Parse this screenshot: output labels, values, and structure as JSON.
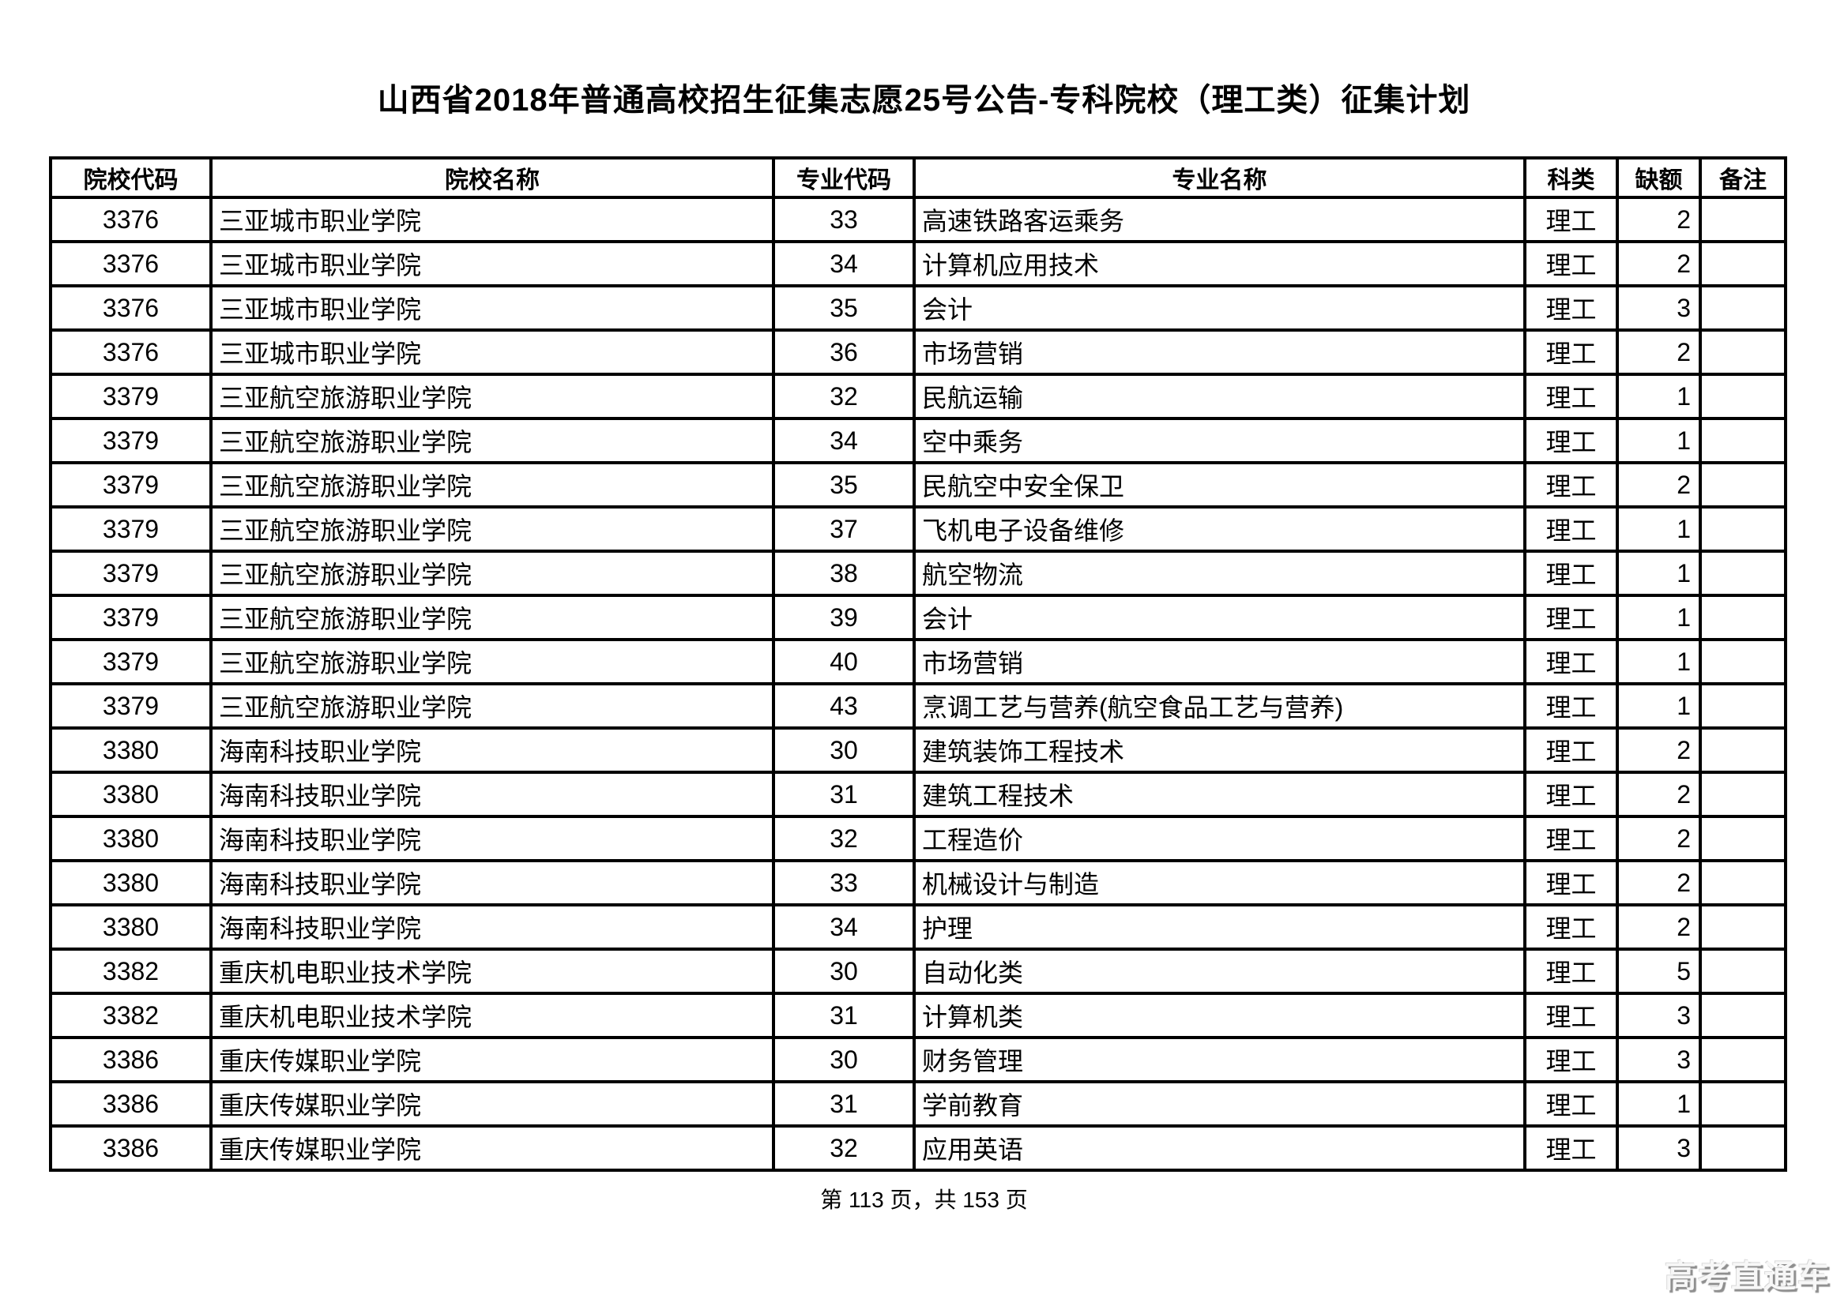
{
  "title": "山西省2018年普通高校招生征集志愿25号公告-专科院校（理工类）征集计划",
  "table": {
    "headers": [
      "院校代码",
      "院校名称",
      "专业代码",
      "专业名称",
      "科类",
      "缺额",
      "备注"
    ],
    "rows": [
      [
        "3376",
        "三亚城市职业学院",
        "33",
        "高速铁路客运乘务",
        "理工",
        "2",
        ""
      ],
      [
        "3376",
        "三亚城市职业学院",
        "34",
        "计算机应用技术",
        "理工",
        "2",
        ""
      ],
      [
        "3376",
        "三亚城市职业学院",
        "35",
        "会计",
        "理工",
        "3",
        ""
      ],
      [
        "3376",
        "三亚城市职业学院",
        "36",
        "市场营销",
        "理工",
        "2",
        ""
      ],
      [
        "3379",
        "三亚航空旅游职业学院",
        "32",
        "民航运输",
        "理工",
        "1",
        ""
      ],
      [
        "3379",
        "三亚航空旅游职业学院",
        "34",
        "空中乘务",
        "理工",
        "1",
        ""
      ],
      [
        "3379",
        "三亚航空旅游职业学院",
        "35",
        "民航空中安全保卫",
        "理工",
        "2",
        ""
      ],
      [
        "3379",
        "三亚航空旅游职业学院",
        "37",
        "飞机电子设备维修",
        "理工",
        "1",
        ""
      ],
      [
        "3379",
        "三亚航空旅游职业学院",
        "38",
        "航空物流",
        "理工",
        "1",
        ""
      ],
      [
        "3379",
        "三亚航空旅游职业学院",
        "39",
        "会计",
        "理工",
        "1",
        ""
      ],
      [
        "3379",
        "三亚航空旅游职业学院",
        "40",
        "市场营销",
        "理工",
        "1",
        ""
      ],
      [
        "3379",
        "三亚航空旅游职业学院",
        "43",
        "烹调工艺与营养(航空食品工艺与营养)",
        "理工",
        "1",
        ""
      ],
      [
        "3380",
        "海南科技职业学院",
        "30",
        "建筑装饰工程技术",
        "理工",
        "2",
        ""
      ],
      [
        "3380",
        "海南科技职业学院",
        "31",
        "建筑工程技术",
        "理工",
        "2",
        ""
      ],
      [
        "3380",
        "海南科技职业学院",
        "32",
        "工程造价",
        "理工",
        "2",
        ""
      ],
      [
        "3380",
        "海南科技职业学院",
        "33",
        "机械设计与制造",
        "理工",
        "2",
        ""
      ],
      [
        "3380",
        "海南科技职业学院",
        "34",
        "护理",
        "理工",
        "2",
        ""
      ],
      [
        "3382",
        "重庆机电职业技术学院",
        "30",
        "自动化类",
        "理工",
        "5",
        ""
      ],
      [
        "3382",
        "重庆机电职业技术学院",
        "31",
        "计算机类",
        "理工",
        "3",
        ""
      ],
      [
        "3386",
        "重庆传媒职业学院",
        "30",
        "财务管理",
        "理工",
        "3",
        ""
      ],
      [
        "3386",
        "重庆传媒职业学院",
        "31",
        "学前教育",
        "理工",
        "1",
        ""
      ],
      [
        "3386",
        "重庆传媒职业学院",
        "32",
        "应用英语",
        "理工",
        "3",
        ""
      ]
    ]
  },
  "footer": {
    "page_text": "第 113 页，共 153 页"
  },
  "watermark": {
    "text": "高考直通车"
  }
}
